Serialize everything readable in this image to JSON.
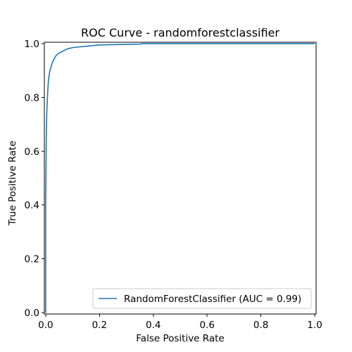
{
  "chart_data": {
    "type": "line",
    "title": "ROC Curve - randomforestclassifier",
    "xlabel": "False Positive Rate",
    "ylabel": "True Positive Rate",
    "xlim": [
      -0.005,
      1.005
    ],
    "ylim": [
      -0.005,
      1.005
    ],
    "xticks": [
      0.0,
      0.2,
      0.4,
      0.6,
      0.8,
      1.0
    ],
    "yticks": [
      0.0,
      0.2,
      0.4,
      0.6,
      0.8,
      1.0
    ],
    "xtick_labels": [
      "0.0",
      "0.2",
      "0.4",
      "0.6",
      "0.8",
      "1.0"
    ],
    "ytick_labels": [
      "0.0",
      "0.2",
      "0.4",
      "0.6",
      "0.8",
      "1.0"
    ],
    "grid": false,
    "legend_position": "lower-right",
    "series": [
      {
        "name": "RandomForestClassifier (AUC = 0.99)",
        "color": "#1f77b4",
        "x": [
          0.0,
          0.0,
          0.002,
          0.004,
          0.006,
          0.008,
          0.01,
          0.013,
          0.016,
          0.02,
          0.025,
          0.03,
          0.035,
          0.04,
          0.05,
          0.06,
          0.07,
          0.08,
          0.1,
          0.12,
          0.15,
          0.18,
          0.2,
          0.25,
          0.3,
          0.35,
          0.36,
          0.5,
          0.7,
          0.9,
          1.0
        ],
        "y": [
          0.0,
          0.4,
          0.65,
          0.74,
          0.79,
          0.83,
          0.86,
          0.885,
          0.9,
          0.915,
          0.93,
          0.94,
          0.95,
          0.957,
          0.965,
          0.97,
          0.975,
          0.98,
          0.985,
          0.987,
          0.99,
          0.993,
          0.995,
          0.996,
          0.997,
          0.998,
          1.0,
          1.0,
          1.0,
          1.0,
          1.0
        ]
      }
    ]
  }
}
